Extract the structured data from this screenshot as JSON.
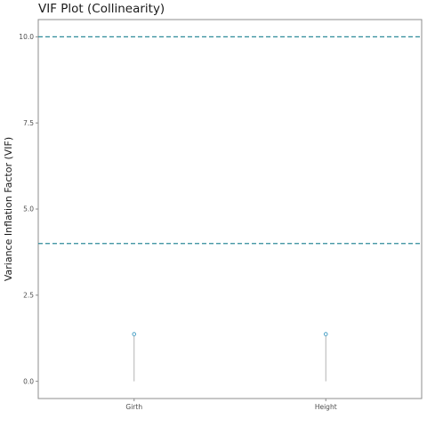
{
  "chart_data": {
    "type": "scatter",
    "title": "VIF Plot (Collinearity)",
    "xlabel": "",
    "ylabel": "Variance Inflation Factor (VIF)",
    "categories": [
      "Girth",
      "Height"
    ],
    "values": [
      1.37,
      1.37
    ],
    "ylim": [
      -0.5,
      10.5
    ],
    "yticks": [
      0.0,
      2.5,
      5.0,
      7.5,
      10.0
    ],
    "ytick_labels": [
      "0.0",
      "2.5",
      "5.0",
      "7.5",
      "10.0"
    ],
    "reference_lines": [
      4,
      10
    ],
    "grid": false,
    "legend": "none",
    "colors": {
      "point": "#4fa3c7",
      "stem": "#b3b3b3",
      "reference": "#2e8b9a",
      "panel_border": "#8c8c8c",
      "tick": "#8c8c8c"
    }
  }
}
